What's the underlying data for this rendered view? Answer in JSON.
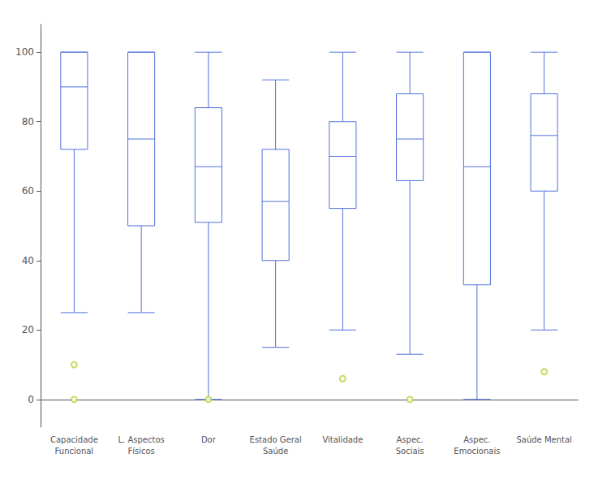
{
  "chart_data": {
    "type": "box",
    "categories": [
      "Capacidade\nFuncional",
      "L. Aspectos\nFísicos",
      "Dor",
      "Estado Geral\nSaúde",
      "Vitalidade",
      "Aspec.\nSociais",
      "Aspec.\nEmocionais",
      "Saúde Mental"
    ],
    "boxes": [
      {
        "q1": 72,
        "median": 90,
        "q3": 100,
        "whisker_low": 25,
        "whisker_high": 100,
        "outliers": [
          10,
          0
        ]
      },
      {
        "q1": 50,
        "median": 75,
        "q3": 100,
        "whisker_low": 25,
        "whisker_high": 100,
        "outliers": []
      },
      {
        "q1": 51,
        "median": 67,
        "q3": 84,
        "whisker_low": 0,
        "whisker_high": 100,
        "outliers": [
          0
        ]
      },
      {
        "q1": 40,
        "median": 57,
        "q3": 72,
        "whisker_low": 15,
        "whisker_high": 92,
        "outliers": []
      },
      {
        "q1": 55,
        "median": 70,
        "q3": 80,
        "whisker_low": 20,
        "whisker_high": 100,
        "outliers": [
          6
        ]
      },
      {
        "q1": 63,
        "median": 75,
        "q3": 88,
        "whisker_low": 13,
        "whisker_high": 100,
        "outliers": [
          0
        ]
      },
      {
        "q1": 33,
        "median": 67,
        "q3": 100,
        "whisker_low": 0,
        "whisker_high": 100,
        "outliers": []
      },
      {
        "q1": 60,
        "median": 76,
        "q3": 88,
        "whisker_low": 20,
        "whisker_high": 100,
        "outliers": [
          8
        ]
      }
    ],
    "ylim": [
      -8,
      108
    ],
    "yticks": [
      0,
      20,
      40,
      60,
      80,
      100
    ],
    "grid": false
  }
}
